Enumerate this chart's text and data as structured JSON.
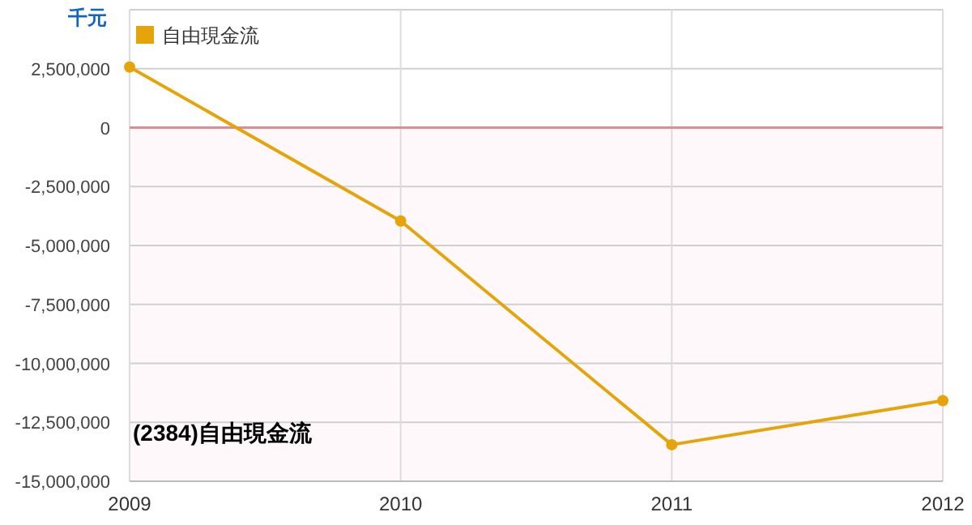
{
  "chart_data": {
    "type": "line",
    "ylabel": "千元",
    "x": [
      "2009",
      "2010",
      "2011",
      "2012"
    ],
    "series": [
      {
        "name": "自由現金流",
        "color": "#e5a50a",
        "values": [
          2570000,
          -3960000,
          -13450000,
          -11580000
        ]
      }
    ],
    "xlim": [
      "2009",
      "2012"
    ],
    "xticks": [
      {
        "value": "2009",
        "label": "2009"
      },
      {
        "value": "2010",
        "label": "2010"
      },
      {
        "value": "2011",
        "label": "2011"
      },
      {
        "value": "2012",
        "label": "2012"
      }
    ],
    "ylim": [
      -15000000,
      5000000
    ],
    "yticks": [
      {
        "value": -15000000,
        "label": "-15,000,000"
      },
      {
        "value": -12500000,
        "label": "-12,500,000"
      },
      {
        "value": -10000000,
        "label": "-10,000,000"
      },
      {
        "value": -7500000,
        "label": "-7,500,000"
      },
      {
        "value": -5000000,
        "label": "-5,000,000"
      },
      {
        "value": -2500000,
        "label": "-2,500,000"
      },
      {
        "value": 0,
        "label": "0"
      },
      {
        "value": 2500000,
        "label": "2,500,000"
      },
      {
        "value": 5000000,
        "label": null
      }
    ],
    "ref_lines": [
      {
        "axis": "y",
        "value": 0,
        "label": null,
        "color": "#e08a94"
      }
    ],
    "bands": [
      {
        "axis": "y",
        "from": -15000000,
        "to": 0,
        "label": null,
        "color": "#fff8fa"
      }
    ],
    "grid": true,
    "legend": "top left",
    "marker": "circle",
    "line_style": "solid",
    "annotations": [
      "(2384)自由現金流"
    ]
  }
}
